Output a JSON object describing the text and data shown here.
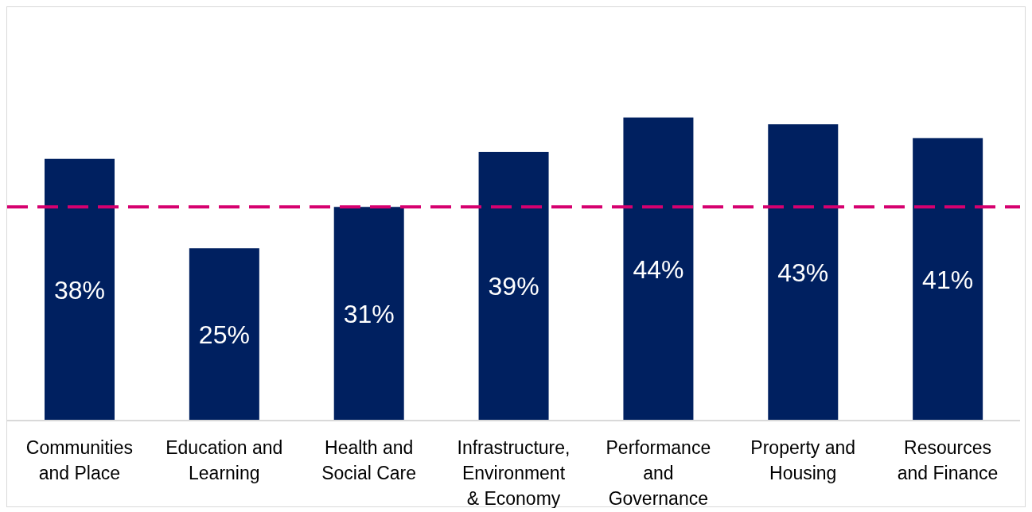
{
  "chart_data": {
    "type": "bar",
    "categories": [
      "Communities\nand Place",
      "Education and\nLearning",
      "Health and\nSocial Care",
      "Infrastructure,\nEnvironment\n& Economy",
      "Performance\nand\nGovernance",
      "Property and\nHousing",
      "Resources\nand Finance"
    ],
    "values": [
      38,
      25,
      31,
      39,
      44,
      43,
      41
    ],
    "color": "#002060",
    "ylim": [
      0,
      60
    ],
    "data_labels": true,
    "value_labels": [
      "38%",
      "25%",
      "31%",
      "39%",
      "44%",
      "43%",
      "41%"
    ],
    "ref_lines": [
      {
        "axis": "y",
        "value": 31,
        "color": "#d6006f",
        "line_style": "dashed"
      }
    ],
    "grid": false
  }
}
